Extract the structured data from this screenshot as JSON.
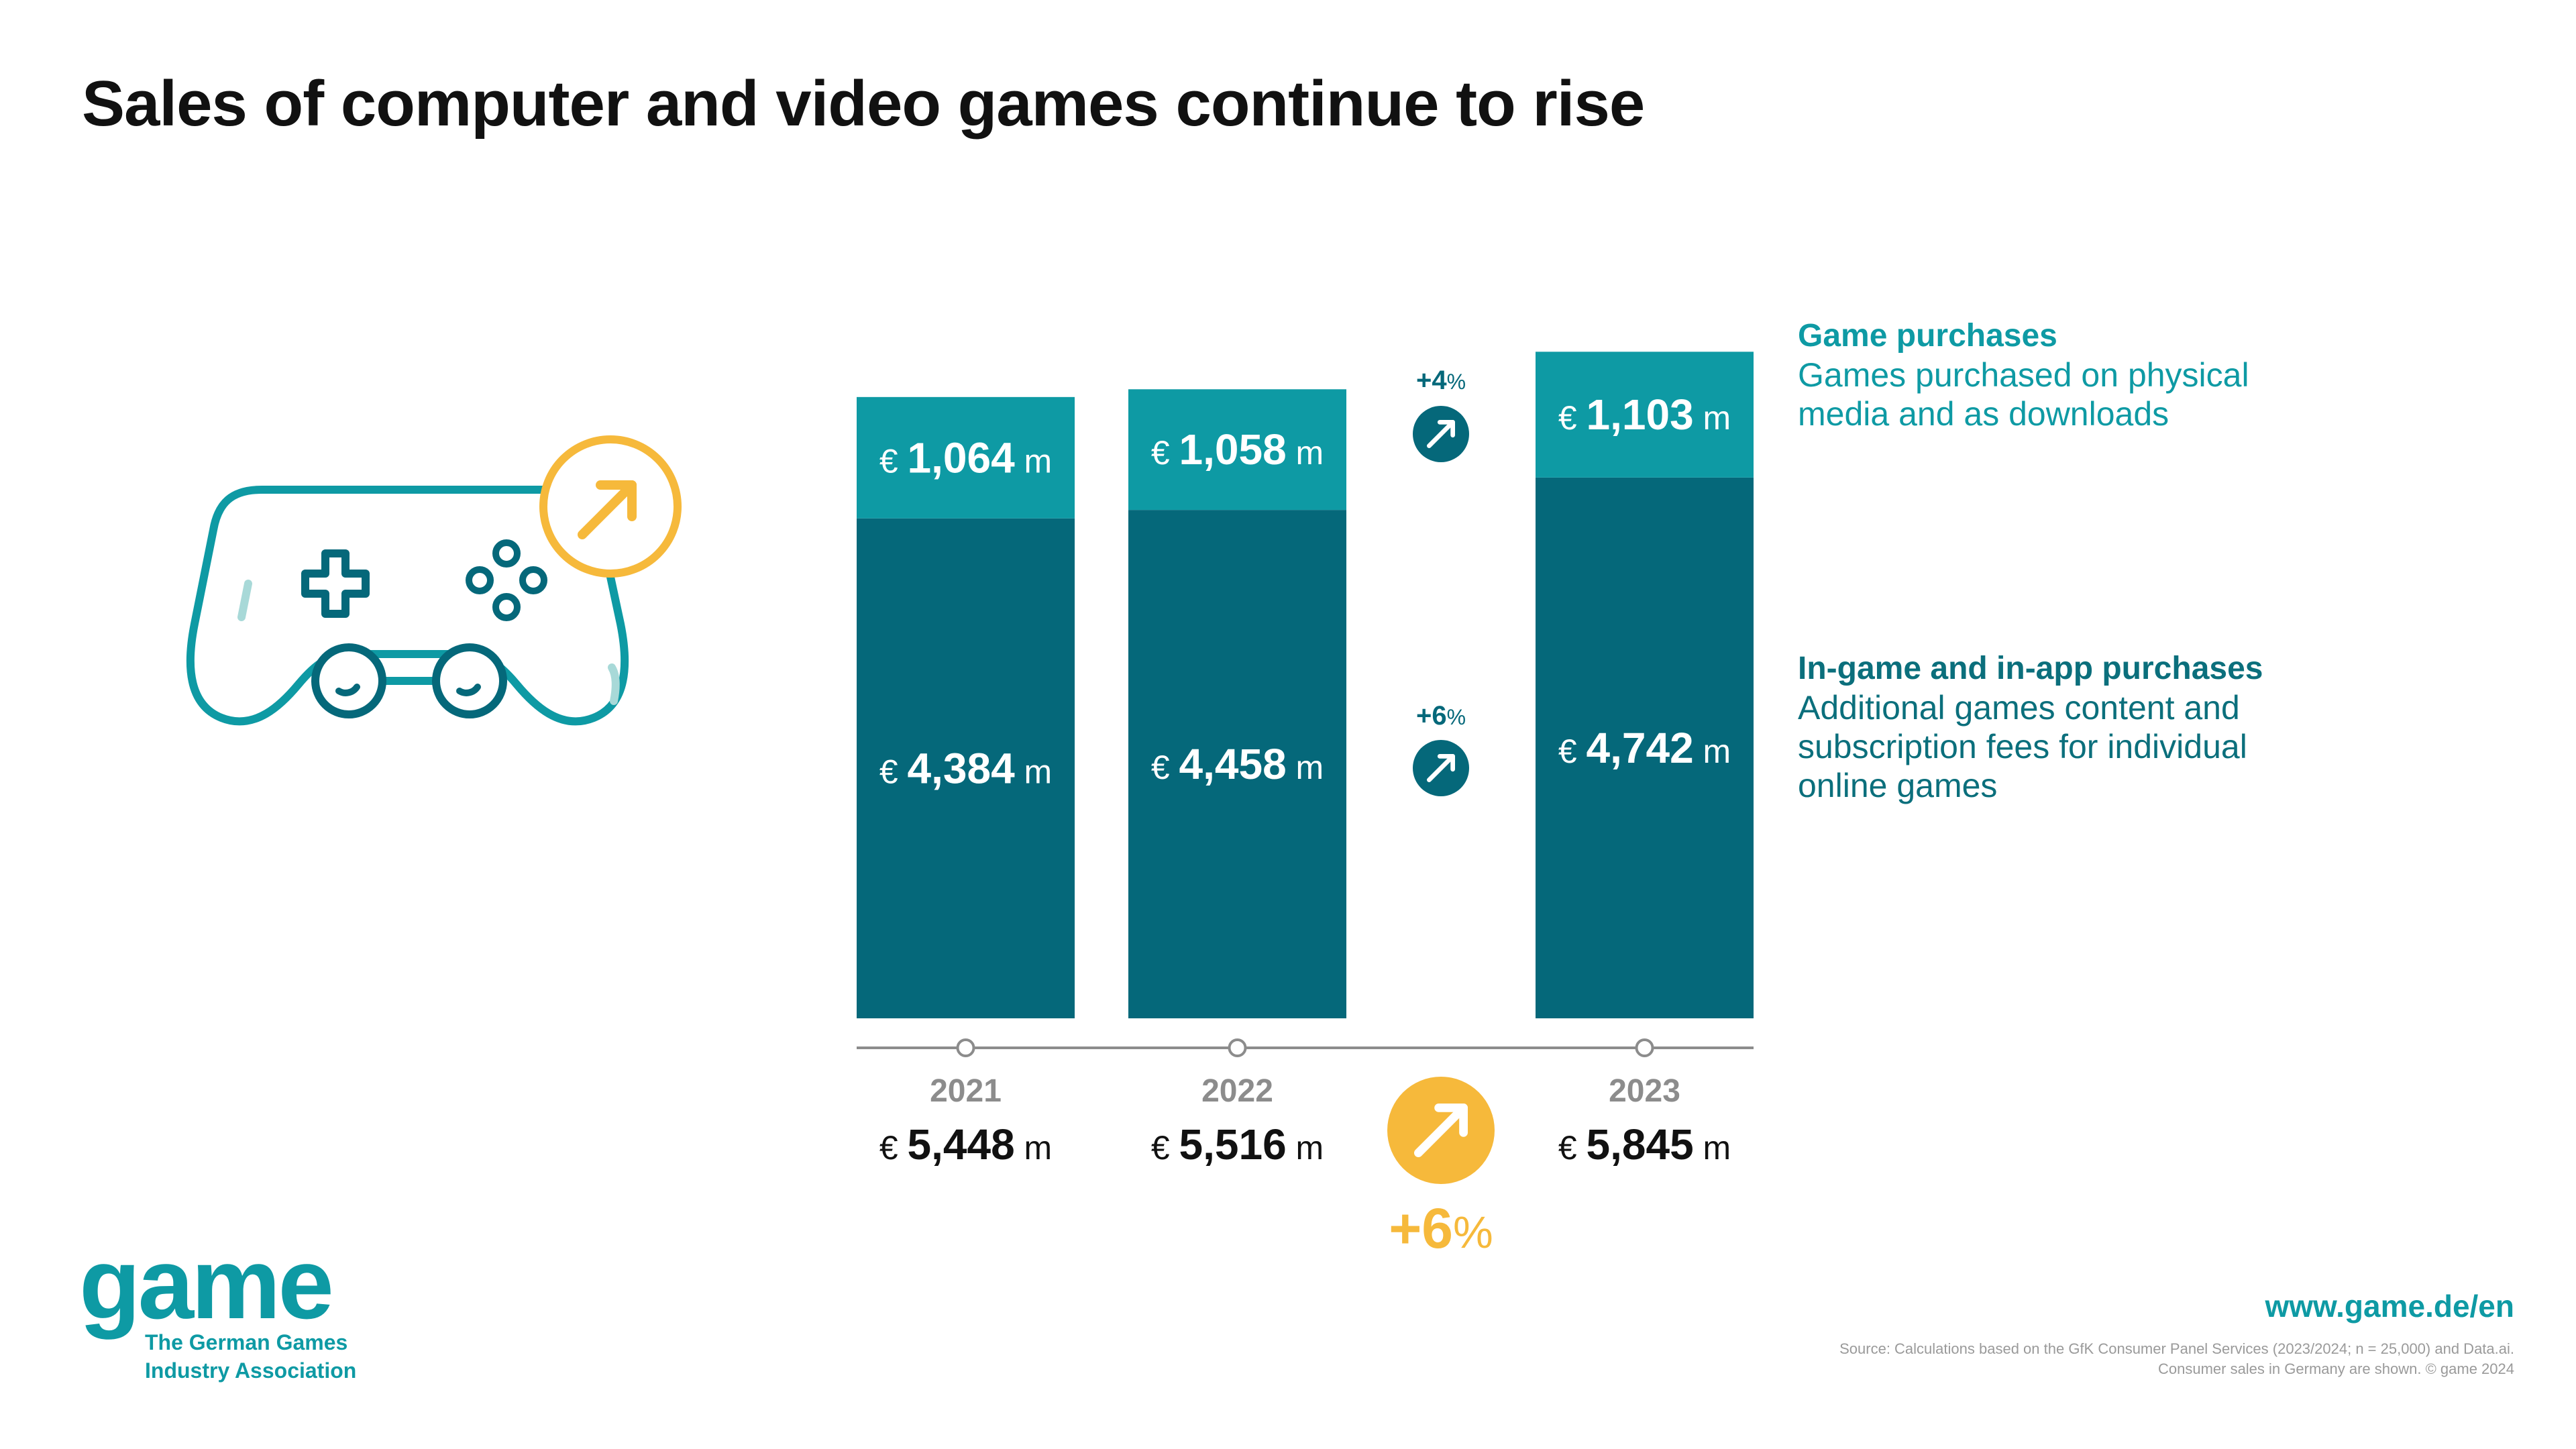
{
  "title": "Sales of computer and video games continue to rise",
  "colors": {
    "top_segment": "#0e9aa4",
    "bottom_segment": "#05687a",
    "accent": "#f6b93b",
    "axis": "#8c8c8c",
    "year_label": "#8c8c8c",
    "text_dark": "#111111"
  },
  "icons": {
    "controller": "game-controller-icon",
    "growth": "arrow-up-right-icon"
  },
  "chart_data": {
    "type": "bar",
    "stacked": true,
    "categories": [
      "2021",
      "2022",
      "2023"
    ],
    "series": [
      {
        "name": "In-game and in-app purchases",
        "values": [
          4384,
          4458,
          4742
        ]
      },
      {
        "name": "Game purchases",
        "values": [
          1064,
          1058,
          1103
        ]
      }
    ],
    "totals": [
      5448,
      5516,
      5845
    ],
    "currency": "€",
    "unit": "m",
    "value_labels": {
      "top": [
        "1,064",
        "1,058",
        "1,103"
      ],
      "bottom": [
        "4,384",
        "4,458",
        "4,742"
      ],
      "totals": [
        "5,448",
        "5,516",
        "5,845"
      ]
    },
    "growth": {
      "top": {
        "value": "+4",
        "suffix": "%"
      },
      "bottom": {
        "value": "+6",
        "suffix": "%"
      },
      "total": {
        "value": "+6",
        "suffix": "%"
      }
    },
    "ylim": [
      0,
      6000
    ],
    "grid": false
  },
  "legend": {
    "top": {
      "title": "Game purchases",
      "desc": [
        "Games purchased on physical",
        "media and as downloads"
      ]
    },
    "bottom": {
      "title": "In-game and in-app purchases",
      "desc": [
        "Additional games content and",
        "subscription fees for individual",
        "online games"
      ]
    }
  },
  "brand": {
    "name": "game",
    "subtitle": [
      "The German Games",
      "Industry Association"
    ]
  },
  "url": "www.game.de/en",
  "source": [
    "Source: Calculations based on the GfK Consumer Panel Services (2023/2024; n = 25,000) and Data.ai.",
    "Consumer sales in Germany are shown. © game 2024"
  ]
}
